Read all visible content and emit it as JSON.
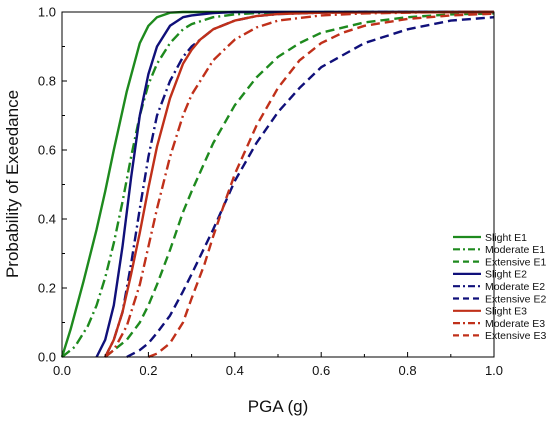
{
  "chart_data": {
    "type": "line",
    "xlabel": "PGA (g)",
    "ylabel": "Probability of Exeedance",
    "xlim": [
      0,
      1
    ],
    "ylim": [
      0,
      1
    ],
    "xticks": [
      "0.0",
      "0.2",
      "0.4",
      "0.6",
      "0.8",
      "1.0"
    ],
    "yticks": [
      "0.0",
      "0.2",
      "0.4",
      "0.6",
      "0.8",
      "1.0"
    ],
    "grid": false,
    "legend_position": "bottom-right",
    "series": [
      {
        "name": "Slight E1",
        "color": "#1e8a1e",
        "dash": "solid",
        "x": [
          0.0,
          0.02,
          0.05,
          0.08,
          0.1,
          0.12,
          0.15,
          0.18,
          0.2,
          0.22,
          0.25,
          0.28,
          0.3,
          1.0
        ],
        "y": [
          0.0,
          0.08,
          0.22,
          0.37,
          0.48,
          0.6,
          0.77,
          0.91,
          0.96,
          0.985,
          0.998,
          1.0,
          1.0,
          1.0
        ]
      },
      {
        "name": "Moderate E1",
        "color": "#1e8a1e",
        "dash": "dashdot",
        "x": [
          0.0,
          0.03,
          0.06,
          0.08,
          0.1,
          0.12,
          0.14,
          0.16,
          0.18,
          0.2,
          0.22,
          0.25,
          0.28,
          0.3,
          0.35,
          0.4,
          0.45,
          0.5,
          0.6,
          1.0
        ],
        "y": [
          0.0,
          0.03,
          0.09,
          0.15,
          0.23,
          0.33,
          0.45,
          0.58,
          0.7,
          0.79,
          0.85,
          0.91,
          0.95,
          0.965,
          0.985,
          0.993,
          0.997,
          0.998,
          1.0,
          1.0
        ]
      },
      {
        "name": "Extensive E1",
        "color": "#1e8a1e",
        "dash": "dash",
        "x": [
          0.1,
          0.12,
          0.15,
          0.18,
          0.2,
          0.22,
          0.25,
          0.28,
          0.3,
          0.35,
          0.4,
          0.45,
          0.5,
          0.55,
          0.6,
          0.7,
          0.8,
          0.9,
          1.0
        ],
        "y": [
          0.0,
          0.02,
          0.05,
          0.1,
          0.15,
          0.21,
          0.31,
          0.42,
          0.48,
          0.62,
          0.73,
          0.81,
          0.87,
          0.91,
          0.94,
          0.97,
          0.985,
          0.993,
          0.996
        ]
      },
      {
        "name": "Slight E2",
        "color": "#10107a",
        "dash": "solid",
        "x": [
          0.08,
          0.1,
          0.12,
          0.14,
          0.16,
          0.18,
          0.2,
          0.22,
          0.25,
          0.28,
          0.3,
          0.35,
          0.4,
          0.5,
          1.0
        ],
        "y": [
          0.0,
          0.05,
          0.15,
          0.32,
          0.52,
          0.7,
          0.82,
          0.9,
          0.96,
          0.985,
          0.99,
          0.997,
          1.0,
          1.0,
          1.0
        ]
      },
      {
        "name": "Moderate E2",
        "color": "#10107a",
        "dash": "dashdot",
        "x": [
          0.1,
          0.12,
          0.14,
          0.16,
          0.18,
          0.2,
          0.22,
          0.25,
          0.28,
          0.3,
          0.35,
          0.4,
          0.45,
          0.5,
          0.6,
          0.7,
          1.0
        ],
        "y": [
          0.0,
          0.05,
          0.13,
          0.27,
          0.43,
          0.58,
          0.7,
          0.8,
          0.87,
          0.9,
          0.95,
          0.975,
          0.988,
          0.994,
          0.998,
          1.0,
          1.0
        ]
      },
      {
        "name": "Extensive E2",
        "color": "#10107a",
        "dash": "dash",
        "x": [
          0.15,
          0.18,
          0.2,
          0.22,
          0.25,
          0.28,
          0.3,
          0.35,
          0.4,
          0.45,
          0.5,
          0.55,
          0.6,
          0.7,
          0.8,
          0.9,
          1.0
        ],
        "y": [
          0.0,
          0.02,
          0.04,
          0.07,
          0.12,
          0.19,
          0.24,
          0.37,
          0.51,
          0.62,
          0.71,
          0.78,
          0.84,
          0.91,
          0.95,
          0.975,
          0.985
        ]
      },
      {
        "name": "Slight E3",
        "color": "#c0301a",
        "dash": "solid",
        "x": [
          0.1,
          0.12,
          0.14,
          0.16,
          0.18,
          0.2,
          0.22,
          0.25,
          0.28,
          0.3,
          0.32,
          0.35,
          0.4,
          0.45,
          0.5,
          0.6,
          1.0
        ],
        "y": [
          0.0,
          0.05,
          0.13,
          0.24,
          0.36,
          0.49,
          0.61,
          0.75,
          0.85,
          0.89,
          0.92,
          0.95,
          0.975,
          0.988,
          0.994,
          0.998,
          1.0
        ]
      },
      {
        "name": "Moderate E3",
        "color": "#c0301a",
        "dash": "dashdot",
        "x": [
          0.1,
          0.12,
          0.15,
          0.18,
          0.2,
          0.22,
          0.25,
          0.28,
          0.3,
          0.35,
          0.4,
          0.45,
          0.5,
          0.6,
          0.7,
          0.8,
          0.9,
          1.0
        ],
        "y": [
          0.0,
          0.02,
          0.09,
          0.21,
          0.32,
          0.43,
          0.58,
          0.7,
          0.76,
          0.86,
          0.92,
          0.955,
          0.975,
          0.99,
          0.996,
          0.998,
          1.0,
          1.0
        ]
      },
      {
        "name": "Extensive E3",
        "color": "#c0301a",
        "dash": "dash",
        "x": [
          0.2,
          0.22,
          0.25,
          0.28,
          0.3,
          0.33,
          0.35,
          0.38,
          0.4,
          0.45,
          0.5,
          0.55,
          0.6,
          0.65,
          0.7,
          0.8,
          0.9,
          1.0
        ],
        "y": [
          0.0,
          0.01,
          0.04,
          0.1,
          0.17,
          0.27,
          0.35,
          0.46,
          0.53,
          0.67,
          0.78,
          0.86,
          0.91,
          0.94,
          0.96,
          0.98,
          0.99,
          0.995
        ]
      }
    ]
  }
}
